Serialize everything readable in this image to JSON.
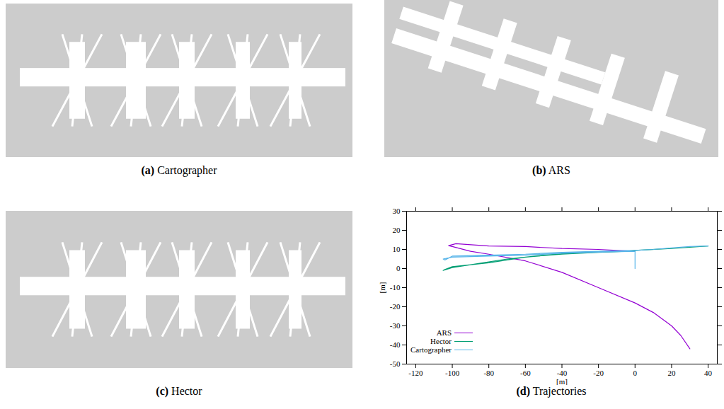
{
  "panels": [
    {
      "letter": "(a)",
      "caption": "Cartographer"
    },
    {
      "letter": "(b)",
      "caption": "ARS"
    },
    {
      "letter": "(c)",
      "caption": "Hector"
    }
  ],
  "chart_letter": "(d)",
  "chart_data": {
    "type": "line",
    "title": "Trajectories",
    "x_label": "[m]",
    "y_label": "[m]",
    "xlim": [
      -125,
      45
    ],
    "ylim": [
      -50,
      30
    ],
    "xticks": [
      -120,
      -100,
      -80,
      -60,
      -40,
      -20,
      0,
      20,
      40
    ],
    "yticks": [
      -50,
      -40,
      -30,
      -20,
      -10,
      0,
      10,
      20,
      30
    ],
    "legend": "bottom-left",
    "series": [
      {
        "name": "ARS",
        "color": "#9400d3",
        "x": [
          0,
          -20,
          -40,
          -60,
          -80,
          -98,
          -102,
          -100,
          -90,
          -80,
          -60,
          -40,
          -20,
          0,
          10,
          20,
          25,
          30
        ],
        "values": [
          9,
          10,
          10.5,
          11.5,
          11.8,
          13,
          12,
          11.5,
          9,
          7.5,
          4,
          -2,
          -10,
          -18,
          -23,
          -30,
          -35,
          -42
        ]
      },
      {
        "name": "Hector",
        "color": "#009e73",
        "x": [
          0,
          -10,
          -30,
          -50,
          -70,
          -90,
          -100,
          -105,
          -104,
          -100,
          -80,
          -60,
          -40,
          -20,
          -5,
          0,
          20,
          40
        ],
        "values": [
          9,
          9,
          8.5,
          7,
          5,
          2,
          0.5,
          -1,
          -0.5,
          1,
          3,
          6,
          7.5,
          8.5,
          9,
          9.5,
          10.5,
          11.8
        ]
      },
      {
        "name": "Cartographer",
        "color": "#56b4e9",
        "x": [
          0,
          0,
          -20,
          -40,
          -60,
          -80,
          -100,
          -105,
          -104,
          -100,
          -80,
          -60,
          -40,
          -20,
          0,
          10,
          20,
          30,
          40
        ],
        "values": [
          0,
          9,
          8.6,
          8,
          7,
          6.5,
          6,
          5,
          4.5,
          6.5,
          7,
          7.5,
          8.5,
          9,
          9.5,
          10,
          10.8,
          11.5,
          11.8
        ]
      }
    ]
  }
}
